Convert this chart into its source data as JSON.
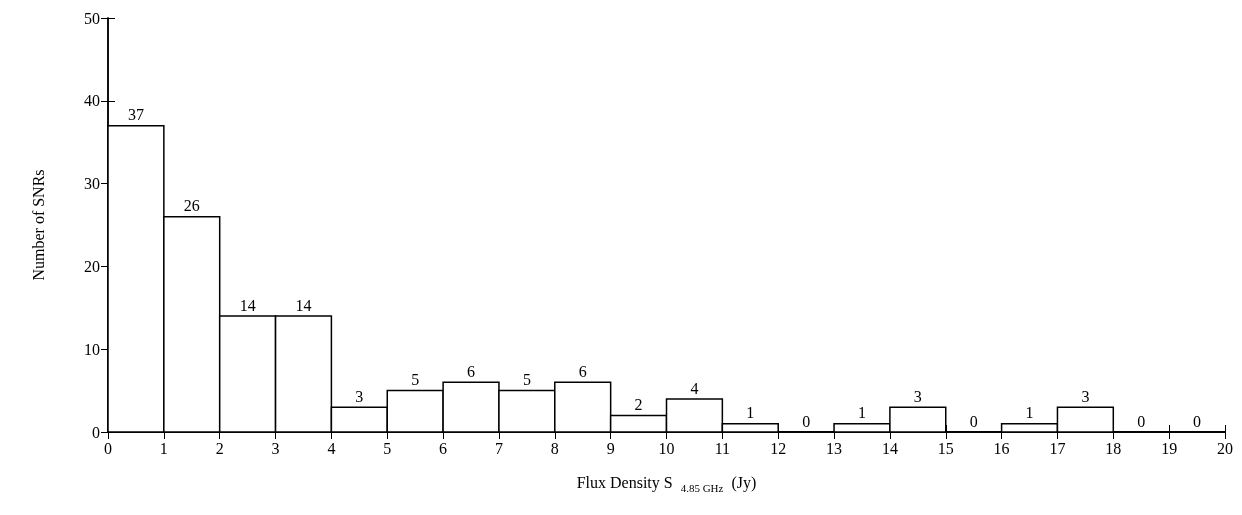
{
  "chart_data": {
    "type": "histogram",
    "xlabel": "Flux Density S $_{4.85 GHz}$ (Jy)",
    "ylabel": "Number of SNRs",
    "bins": [
      0,
      1,
      2,
      3,
      4,
      5,
      6,
      7,
      8,
      9,
      10,
      11,
      12,
      13,
      14,
      15,
      16,
      17,
      18,
      19,
      20
    ],
    "values": [
      37,
      26,
      14,
      14,
      3,
      5,
      6,
      5,
      6,
      2,
      4,
      1,
      0,
      1,
      3,
      0,
      1,
      3,
      0,
      0
    ],
    "color": "#ffffff",
    "xlim": [
      0,
      20
    ],
    "xticks": [
      0,
      1,
      2,
      3,
      4,
      5,
      6,
      7,
      8,
      9,
      10,
      11,
      12,
      13,
      14,
      15,
      16,
      17,
      18,
      19,
      20
    ],
    "ylim": [
      0,
      50
    ],
    "yticks": [
      0,
      10,
      20,
      30,
      40,
      50
    ],
    "grid": false,
    "data_labels": true
  }
}
